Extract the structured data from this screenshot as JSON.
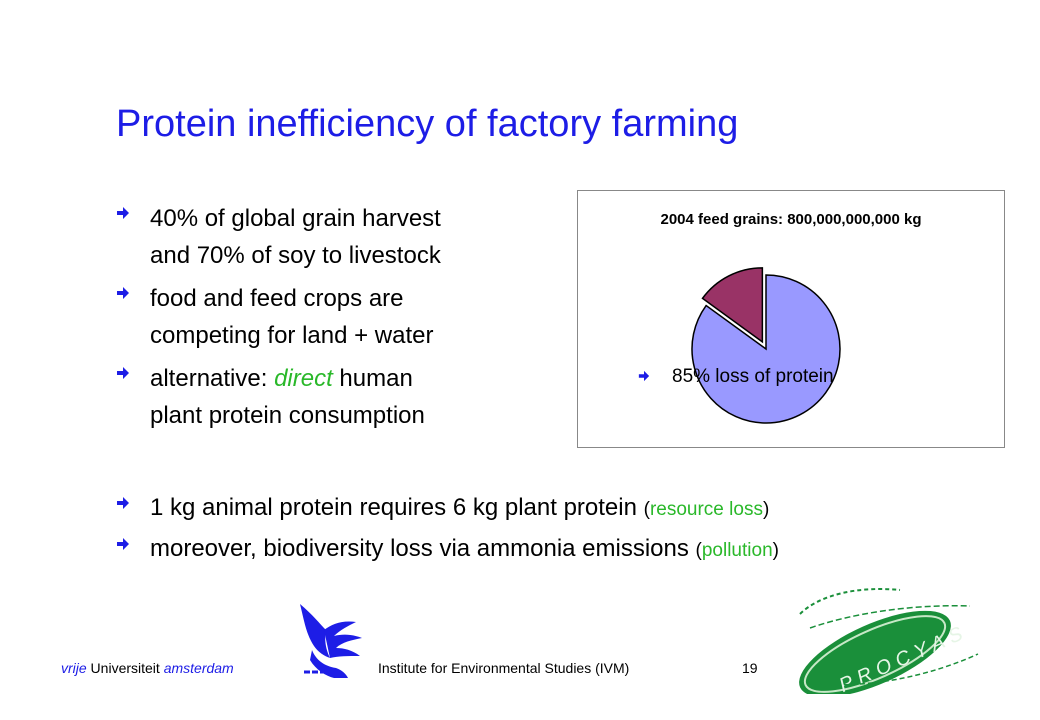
{
  "slide": {
    "title": "Protein inefficiency of factory farming",
    "top_bullets": [
      {
        "line1": "40% of global grain harvest",
        "line2": "and 70% of soy to livestock"
      },
      {
        "line1": "food and feed crops are",
        "line2": "competing for land + water"
      },
      {
        "line1_pre": "alternative: ",
        "line1_emph": "direct",
        "line1_post": " human",
        "line2": "plant protein consumption"
      }
    ],
    "bottom_bullets": [
      {
        "text": "1 kg animal protein requires 6 kg plant protein ",
        "paren_open": "(",
        "paren_text": "resource loss",
        "paren_close": ")"
      },
      {
        "text": "moreover, biodiversity loss via ammonia emissions ",
        "paren_open": "(",
        "paren_text": "pollution",
        "paren_close": ")"
      }
    ],
    "bullet_icon": "right-arrow-icon",
    "colors": {
      "title": "#1d1de6",
      "emphasis": "#2ab82a",
      "pie_main": "#9999ff",
      "pie_slice": "#993366"
    }
  },
  "chart_data": {
    "type": "pie",
    "title": "2004 feed grains: 800,000,000,000  kg",
    "values": [
      85,
      15
    ],
    "annotation": "85% loss of protein"
  },
  "footer": {
    "left_it1": "vrije",
    "left_mid": " Universiteit ",
    "left_it2": "amsterdam",
    "institute": "Institute for Environmental Studies (IVM)",
    "page": "19"
  }
}
